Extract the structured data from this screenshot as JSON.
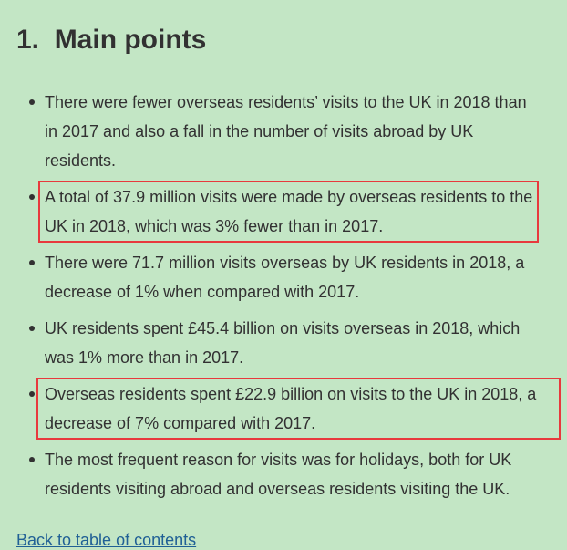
{
  "header": {
    "title": "1.  Main points"
  },
  "list": {
    "items": [
      "There were fewer overseas residents’ visits to the UK in 2018 than in 2017 and also a fall in the number of visits abroad by UK residents.",
      "A total of 37.9 million visits were made by overseas residents to the UK in 2018, which was 3% fewer than in 2017.",
      "There were 71.7 million visits overseas by UK residents in 2018, a decrease of 1% when compared with 2017.",
      "UK residents spent £45.4 billion on visits overseas in 2018, which was 1% more than in 2017.",
      "Overseas residents spent £22.9 billion on visits to the UK in 2018, a decrease of 7% compared with 2017.",
      "The most frequent reason for visits was for holidays, both for UK residents visiting abroad and overseas residents visiting the UK."
    ],
    "highlighted": [
      1,
      4
    ]
  },
  "footer": {
    "link": "Back to table of contents"
  }
}
